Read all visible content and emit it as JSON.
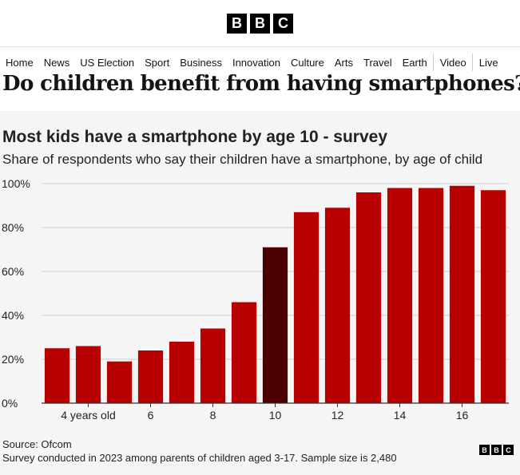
{
  "masthead": {
    "logo_letters": [
      "B",
      "B",
      "C"
    ]
  },
  "nav": {
    "items": [
      "Home",
      "News",
      "US Election",
      "Sport",
      "Business",
      "Innovation",
      "Culture",
      "Arts",
      "Travel",
      "Earth",
      "Video",
      "Live"
    ]
  },
  "article": {
    "headline": "Do children benefit from having smartphones?"
  },
  "footer": {
    "source": "Source: Ofcom",
    "note": "Survey conducted in 2023 among parents of children aged 3-17. Sample size is 2,480",
    "logo_letters": [
      "B",
      "B",
      "C"
    ]
  },
  "colors": {
    "bar": "#b80000",
    "highlight": "#4d0000",
    "background": "#f5f5f5"
  },
  "chart_data": {
    "type": "bar",
    "title": "Most kids have a smartphone by age 10 - survey",
    "subtitle": "Share of respondents who say their children have a smartphone, by age of child",
    "xlabel": "",
    "ylabel": "",
    "categories": [
      3,
      4,
      5,
      6,
      7,
      8,
      9,
      10,
      11,
      12,
      13,
      14,
      15,
      16,
      17
    ],
    "values": [
      25,
      26,
      19,
      24,
      28,
      34,
      46,
      71,
      87,
      89,
      96,
      98,
      98,
      99,
      97
    ],
    "highlight_category": 10,
    "ylim": [
      0,
      100
    ],
    "y_ticks": [
      0,
      20,
      40,
      60,
      80,
      100
    ],
    "y_tick_labels": [
      "0%",
      "20%",
      "40%",
      "60%",
      "80%",
      "100%"
    ],
    "x_tick_labels": [
      {
        "category": 4,
        "label": "4 years old"
      },
      {
        "category": 6,
        "label": "6"
      },
      {
        "category": 8,
        "label": "8"
      },
      {
        "category": 10,
        "label": "10"
      },
      {
        "category": 12,
        "label": "12"
      },
      {
        "category": 14,
        "label": "14"
      },
      {
        "category": 16,
        "label": "16"
      }
    ],
    "grid": true,
    "legend": "none"
  }
}
